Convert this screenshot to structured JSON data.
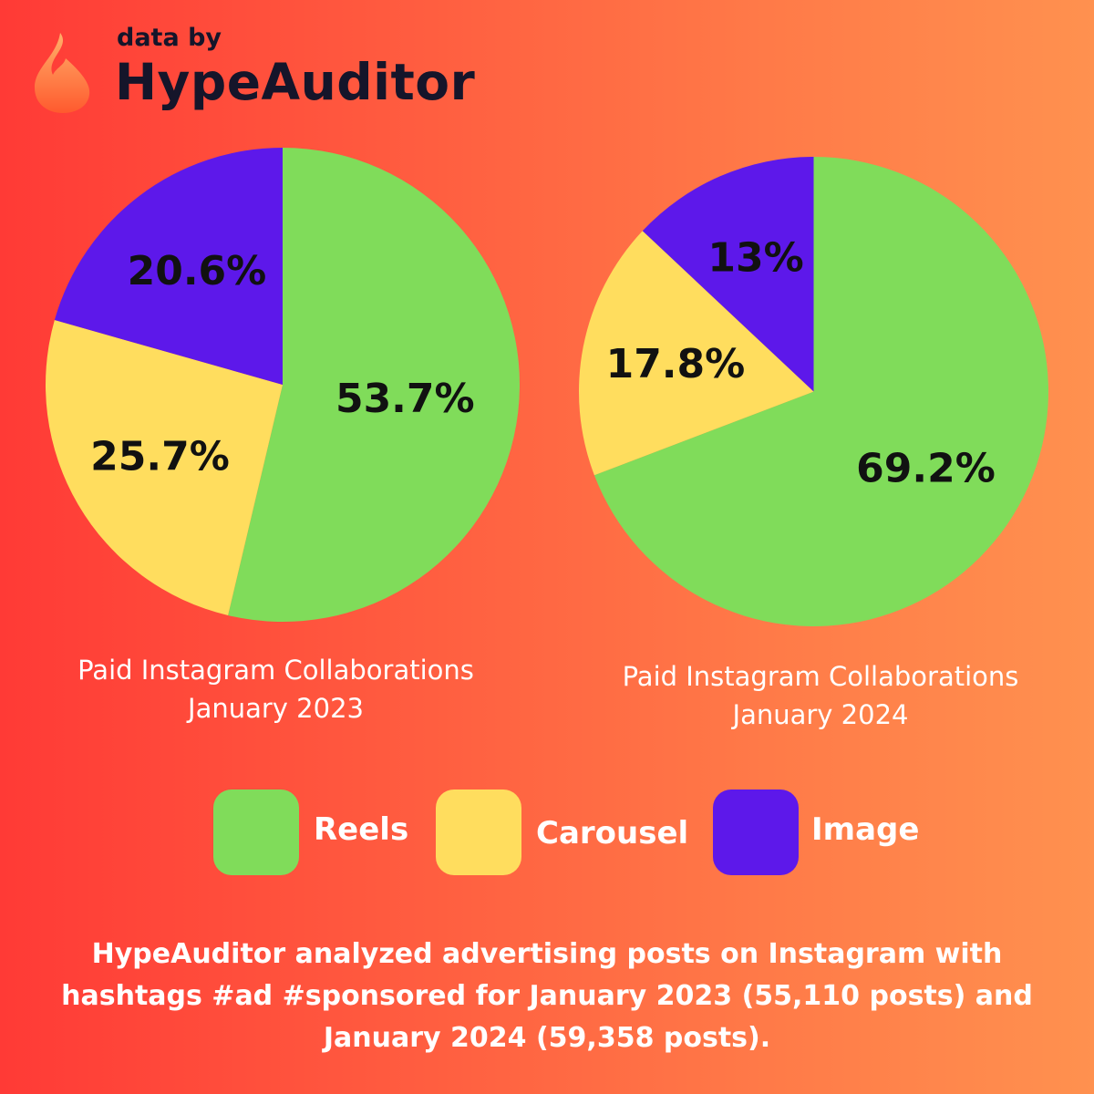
{
  "brand": {
    "small_text": "data by",
    "name": "HypeAuditor"
  },
  "chart_data": [
    {
      "type": "pie",
      "title": "Paid Instagram Collaborations",
      "subtitle": "January 2023",
      "categories": [
        "Reels",
        "Carousel",
        "Image"
      ],
      "values": [
        53.7,
        25.7,
        20.6
      ],
      "labels": [
        "53.7%",
        "25.7%",
        "20.6%"
      ],
      "colors": [
        "#80dc5a",
        "#ffdd5e",
        "#5d18ea"
      ]
    },
    {
      "type": "pie",
      "title": "Paid Instagram Collaborations",
      "subtitle": "January 2024",
      "categories": [
        "Reels",
        "Carousel",
        "Image"
      ],
      "values": [
        69.2,
        17.8,
        13
      ],
      "labels": [
        "69.2%",
        "17.8%",
        "13%"
      ],
      "colors": [
        "#80dc5a",
        "#ffdd5e",
        "#5d18ea"
      ]
    }
  ],
  "legend": {
    "placement": "bottom",
    "items": [
      {
        "label": "Reels",
        "color": "#80dc5a"
      },
      {
        "label": "Carousel",
        "color": "#ffdd5e"
      },
      {
        "label": "Image",
        "color": "#5d18ea"
      }
    ]
  },
  "footnote": {
    "line1": "HypeAuditor analyzed advertising posts on Instagram with",
    "line2": "hashtags #ad #sponsored for January 2023 (55,110 posts) and",
    "line3": "January 2024 (59,358 posts)."
  }
}
